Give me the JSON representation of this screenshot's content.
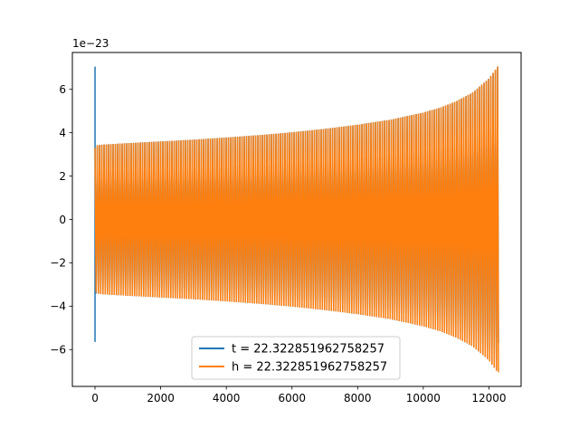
{
  "chart_data": {
    "type": "line",
    "title": "",
    "xlabel": "",
    "ylabel": "",
    "y_offset_label": "1e−23",
    "xlim": [
      -690,
      12980
    ],
    "ylim": [
      -7.7,
      7.7
    ],
    "x_ticks": [
      0,
      2000,
      4000,
      6000,
      8000,
      10000,
      12000
    ],
    "x_tick_labels": [
      "0",
      "2000",
      "4000",
      "6000",
      "8000",
      "10000",
      "12000"
    ],
    "y_ticks": [
      -6,
      -4,
      -2,
      0,
      2,
      4,
      6
    ],
    "y_tick_labels": [
      "−6",
      "−4",
      "−2",
      "0",
      "2",
      "4",
      "6"
    ],
    "grid": false,
    "legend_position": "lower-center",
    "series": [
      {
        "name": "t = 22.322851962758257",
        "color": "#1f77b4",
        "x": [
          0,
          0,
          0,
          0,
          60,
          200,
          1000,
          2000,
          3000,
          4000,
          5000,
          6000,
          7000,
          8000,
          9000,
          10000,
          10500,
          11000,
          11500,
          12000,
          12290
        ],
        "amplitude": [
          7.05,
          -5.65,
          3.3,
          -3.4,
          3.42,
          3.45,
          3.52,
          3.6,
          3.68,
          3.78,
          3.89,
          4.02,
          4.18,
          4.37,
          4.6,
          4.93,
          5.15,
          5.45,
          5.85,
          6.5,
          7.1
        ]
      },
      {
        "name": "h = 22.322851962758257",
        "color": "#ff7f0e",
        "x": [
          0,
          60,
          200,
          1000,
          2000,
          3000,
          4000,
          5000,
          6000,
          7000,
          8000,
          9000,
          10000,
          10500,
          11000,
          11500,
          12000,
          12290
        ],
        "amplitude": [
          3.3,
          3.42,
          3.45,
          3.52,
          3.6,
          3.68,
          3.78,
          3.89,
          4.02,
          4.18,
          4.37,
          4.6,
          4.93,
          5.15,
          5.45,
          5.85,
          6.5,
          7.1
        ]
      }
    ]
  }
}
